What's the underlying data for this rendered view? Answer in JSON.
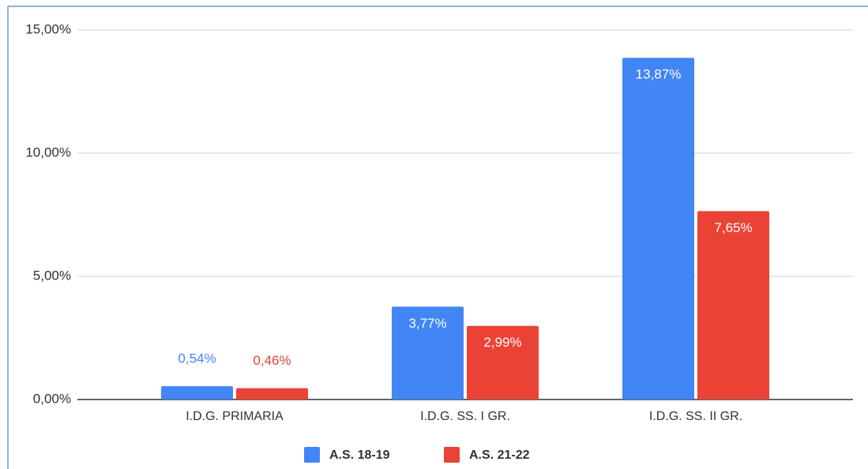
{
  "chart_data": {
    "type": "bar",
    "categories": [
      "I.D.G. PRIMARIA",
      "I.D.G. SS. I GR.",
      "I.D.G. SS. II GR."
    ],
    "series": [
      {
        "name": "A.S. 18-19",
        "color": "#4285f4",
        "values": [
          0.54,
          3.77,
          13.87
        ],
        "value_labels": [
          "0,54%",
          "3,77%",
          "13,87%"
        ]
      },
      {
        "name": "A.S. 21-22",
        "color": "#ea4335",
        "values": [
          0.46,
          2.99,
          7.65
        ],
        "value_labels": [
          "0,46%",
          "2,99%",
          "7,65%"
        ]
      }
    ],
    "ylim": [
      0,
      15
    ],
    "yticks": [
      {
        "value": 0,
        "label": "0,00%"
      },
      {
        "value": 5,
        "label": "5,00%"
      },
      {
        "value": 10,
        "label": "10,00%"
      },
      {
        "value": 15,
        "label": "15,00%"
      }
    ],
    "grid": true,
    "legend": "bottom"
  }
}
